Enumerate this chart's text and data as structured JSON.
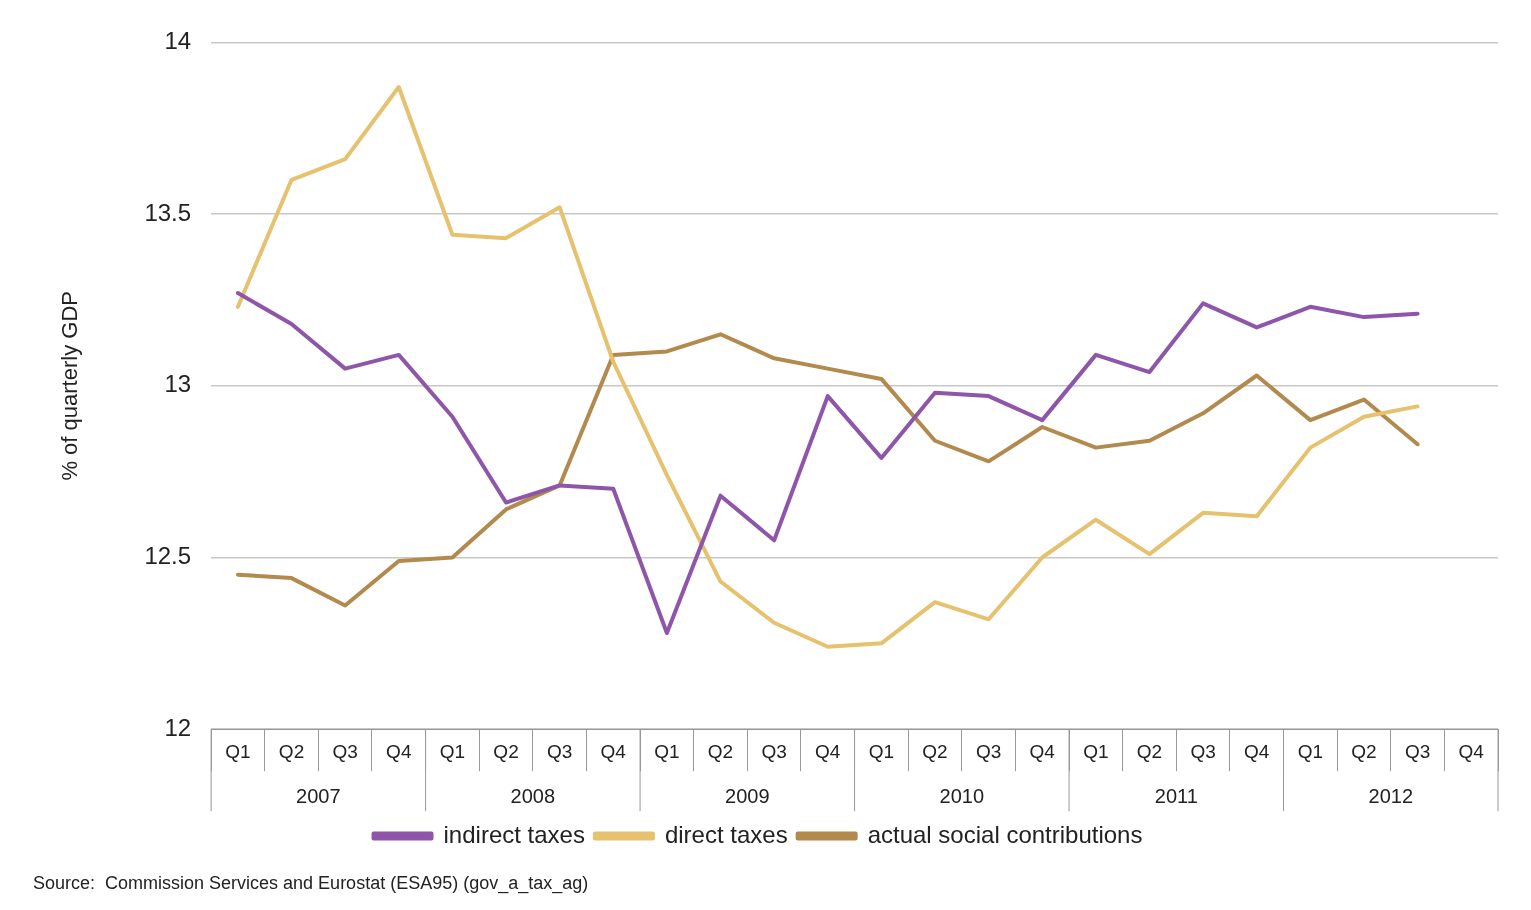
{
  "chart_data": {
    "type": "line",
    "ylabel": "% of quarterly GDP",
    "categories": [
      "Q1",
      "Q2",
      "Q3",
      "Q4",
      "Q1",
      "Q2",
      "Q3",
      "Q4",
      "Q1",
      "Q2",
      "Q3",
      "Q4",
      "Q1",
      "Q2",
      "Q3",
      "Q4",
      "Q1",
      "Q2",
      "Q3",
      "Q4",
      "Q1",
      "Q2",
      "Q3",
      "Q4"
    ],
    "series": [
      {
        "name": "indirect taxes",
        "color": "#8e55a8",
        "values": [
          13.27,
          13.18,
          13.05,
          13.09,
          12.91,
          12.66,
          12.71,
          12.7,
          12.28,
          12.68,
          12.55,
          12.97,
          12.79,
          12.98,
          12.97,
          12.9,
          13.09,
          13.04,
          13.24,
          13.17,
          13.23,
          13.2,
          13.21,
          null
        ]
      },
      {
        "name": "direct taxes",
        "color": "#e6c16e",
        "values": [
          13.23,
          13.6,
          13.66,
          13.87,
          13.44,
          13.43,
          13.52,
          13.07,
          12.74,
          12.43,
          12.31,
          12.24,
          12.25,
          12.37,
          12.32,
          12.5,
          12.61,
          12.51,
          12.63,
          12.62,
          12.82,
          12.91,
          12.94,
          null
        ]
      },
      {
        "name": "actual social contributions",
        "color": "#b38a4e",
        "values": [
          12.45,
          12.44,
          12.36,
          12.49,
          12.5,
          12.64,
          12.71,
          13.09,
          13.1,
          13.15,
          13.08,
          13.05,
          13.02,
          12.84,
          12.78,
          12.88,
          12.82,
          12.84,
          12.92,
          13.03,
          12.9,
          12.96,
          12.83,
          null
        ]
      }
    ],
    "ylim": [
      12,
      14
    ],
    "yticks": [
      12,
      12.5,
      13,
      13.5,
      14
    ],
    "grid": "y",
    "legend": "bottom",
    "marker": "none",
    "line_style": "solid",
    "annotations": [
      "2007",
      "2008",
      "2009",
      "2010",
      "2011",
      "2012",
      "Source:  Commission Services and Eurostat (ESA95) (gov_a_tax_ag)"
    ]
  }
}
